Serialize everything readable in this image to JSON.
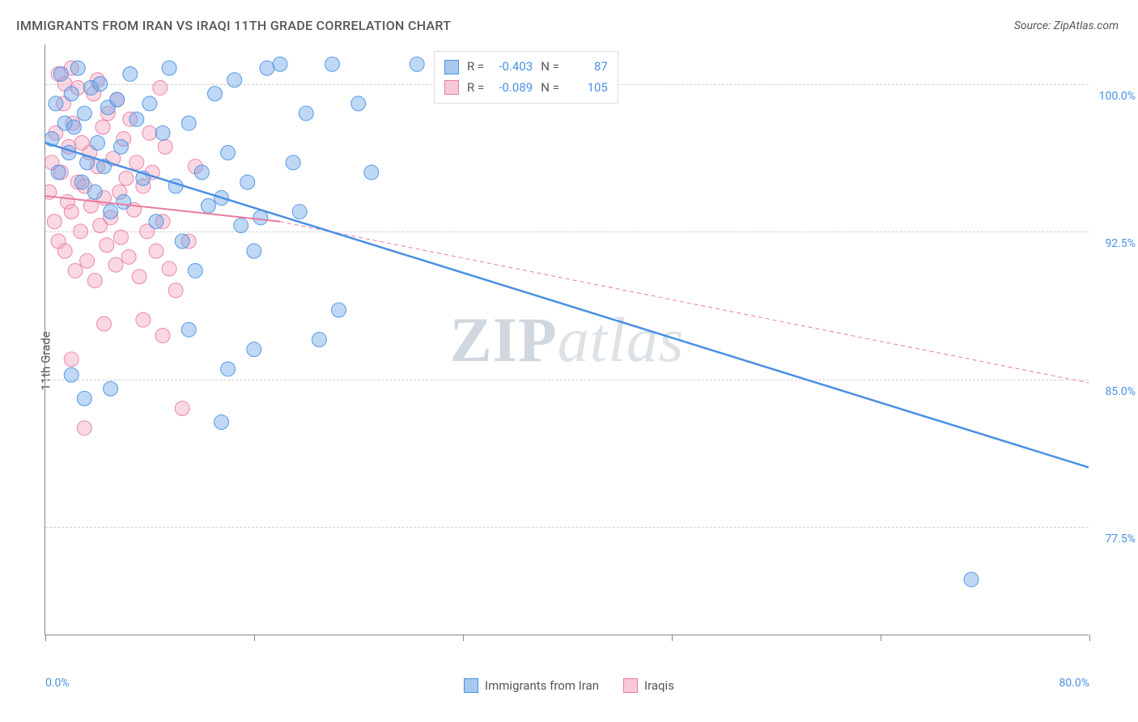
{
  "title": "IMMIGRANTS FROM IRAN VS IRAQI 11TH GRADE CORRELATION CHART",
  "source": "Source: ZipAtlas.com",
  "ylabel": "11th Grade",
  "watermark_zip": "ZIP",
  "watermark_atlas": "atlas",
  "chart": {
    "type": "scatter",
    "background_color": "#ffffff",
    "grid_color": "#d0d0d0",
    "axis_color": "#888888",
    "tick_label_color": "#4a90e2",
    "xlim": [
      0,
      80
    ],
    "ylim": [
      72,
      102
    ],
    "xtick_positions": [
      0,
      16,
      32,
      48,
      64,
      80
    ],
    "xtick_labels": {
      "0": "0.0%",
      "80": "80.0%"
    },
    "ytick_positions": [
      77.5,
      85.0,
      92.5,
      100.0
    ],
    "ytick_labels": [
      "77.5%",
      "85.0%",
      "92.5%",
      "100.0%"
    ],
    "marker_radius": 9,
    "marker_opacity": 0.45,
    "marker_stroke_opacity": 0.9,
    "series": [
      {
        "name": "Immigrants from Iran",
        "color": "#6fa8e8",
        "stroke": "#4a90e2",
        "r_label": "R =",
        "r_value": "-0.403",
        "n_label": "N =",
        "n_value": "87",
        "regression": {
          "x1": 0,
          "y1": 97.0,
          "x2": 80,
          "y2": 80.5,
          "width": 2.5,
          "dash": "none"
        },
        "points": [
          [
            0.5,
            97.2
          ],
          [
            0.8,
            99.0
          ],
          [
            1.0,
            95.5
          ],
          [
            1.2,
            100.5
          ],
          [
            1.5,
            98.0
          ],
          [
            1.8,
            96.5
          ],
          [
            2.0,
            99.5
          ],
          [
            2.2,
            97.8
          ],
          [
            2.5,
            100.8
          ],
          [
            2.8,
            95.0
          ],
          [
            3.0,
            98.5
          ],
          [
            3.2,
            96.0
          ],
          [
            3.5,
            99.8
          ],
          [
            3.8,
            94.5
          ],
          [
            4.0,
            97.0
          ],
          [
            4.2,
            100.0
          ],
          [
            4.5,
            95.8
          ],
          [
            4.8,
            98.8
          ],
          [
            5.0,
            93.5
          ],
          [
            5.5,
            99.2
          ],
          [
            5.8,
            96.8
          ],
          [
            6.0,
            94.0
          ],
          [
            6.5,
            100.5
          ],
          [
            7.0,
            98.2
          ],
          [
            7.5,
            95.2
          ],
          [
            8.0,
            99.0
          ],
          [
            8.5,
            93.0
          ],
          [
            9.0,
            97.5
          ],
          [
            9.5,
            100.8
          ],
          [
            10.0,
            94.8
          ],
          [
            10.5,
            92.0
          ],
          [
            11.0,
            98.0
          ],
          [
            11.5,
            90.5
          ],
          [
            12.0,
            95.5
          ],
          [
            12.5,
            93.8
          ],
          [
            13.0,
            99.5
          ],
          [
            13.5,
            94.2
          ],
          [
            14.0,
            96.5
          ],
          [
            14.5,
            100.2
          ],
          [
            15.0,
            92.8
          ],
          [
            15.5,
            95.0
          ],
          [
            16.0,
            91.5
          ],
          [
            16.5,
            93.2
          ],
          [
            17.0,
            100.8
          ],
          [
            2.0,
            85.2
          ],
          [
            3.0,
            84.0
          ],
          [
            5.0,
            84.5
          ],
          [
            11.0,
            87.5
          ],
          [
            13.5,
            82.8
          ],
          [
            14.0,
            85.5
          ],
          [
            18.0,
            101.0
          ],
          [
            19.0,
            96.0
          ],
          [
            20.0,
            98.5
          ],
          [
            22.0,
            101.0
          ],
          [
            24.0,
            99.0
          ],
          [
            25.0,
            95.5
          ],
          [
            21.0,
            87.0
          ],
          [
            22.5,
            88.5
          ],
          [
            16.0,
            86.5
          ],
          [
            19.5,
            93.5
          ]
        ]
      },
      {
        "name": "Iraqis",
        "color": "#f5a9c0",
        "stroke": "#e87ba0",
        "r_label": "R =",
        "r_value": "-0.089",
        "n_label": "N =",
        "n_value": "105",
        "regression_solid": {
          "x1": 0,
          "y1": 94.3,
          "x2": 18,
          "y2": 93.0,
          "width": 2,
          "dash": "none"
        },
        "regression_dashed": {
          "x1": 18,
          "y1": 93.0,
          "x2": 80,
          "y2": 84.8,
          "width": 1,
          "dash": "5,4"
        },
        "points": [
          [
            0.3,
            94.5
          ],
          [
            0.5,
            96.0
          ],
          [
            0.7,
            93.0
          ],
          [
            0.8,
            97.5
          ],
          [
            1.0,
            92.0
          ],
          [
            1.2,
            95.5
          ],
          [
            1.4,
            99.0
          ],
          [
            1.5,
            91.5
          ],
          [
            1.7,
            94.0
          ],
          [
            1.8,
            96.8
          ],
          [
            2.0,
            93.5
          ],
          [
            2.1,
            98.0
          ],
          [
            2.3,
            90.5
          ],
          [
            2.5,
            95.0
          ],
          [
            2.7,
            92.5
          ],
          [
            2.8,
            97.0
          ],
          [
            3.0,
            94.8
          ],
          [
            3.2,
            91.0
          ],
          [
            3.4,
            96.5
          ],
          [
            3.5,
            93.8
          ],
          [
            3.7,
            99.5
          ],
          [
            3.8,
            90.0
          ],
          [
            4.0,
            95.8
          ],
          [
            4.2,
            92.8
          ],
          [
            4.4,
            97.8
          ],
          [
            4.5,
            94.2
          ],
          [
            4.7,
            91.8
          ],
          [
            4.8,
            98.5
          ],
          [
            5.0,
            93.2
          ],
          [
            5.2,
            96.2
          ],
          [
            5.4,
            90.8
          ],
          [
            5.5,
            99.2
          ],
          [
            5.7,
            94.5
          ],
          [
            5.8,
            92.2
          ],
          [
            6.0,
            97.2
          ],
          [
            6.2,
            95.2
          ],
          [
            6.4,
            91.2
          ],
          [
            6.5,
            98.2
          ],
          [
            6.8,
            93.6
          ],
          [
            7.0,
            96.0
          ],
          [
            7.2,
            90.2
          ],
          [
            7.5,
            94.8
          ],
          [
            7.8,
            92.5
          ],
          [
            8.0,
            97.5
          ],
          [
            8.2,
            95.5
          ],
          [
            8.5,
            91.5
          ],
          [
            8.8,
            99.8
          ],
          [
            9.0,
            93.0
          ],
          [
            9.2,
            96.8
          ],
          [
            9.5,
            90.6
          ],
          [
            1.0,
            100.5
          ],
          [
            1.5,
            100.0
          ],
          [
            2.0,
            100.8
          ],
          [
            2.5,
            99.8
          ],
          [
            4.0,
            100.2
          ],
          [
            3.0,
            82.5
          ],
          [
            4.5,
            87.8
          ],
          [
            2.0,
            86.0
          ],
          [
            7.5,
            88.0
          ],
          [
            9.0,
            87.2
          ],
          [
            10.0,
            89.5
          ],
          [
            10.5,
            83.5
          ],
          [
            11.0,
            92.0
          ],
          [
            11.5,
            95.8
          ]
        ]
      },
      {
        "name": "extra_blue",
        "color": "#6fa8e8",
        "stroke": "#4a90e2",
        "points": [
          [
            28.5,
            101.0
          ],
          [
            71.0,
            74.8
          ]
        ]
      }
    ],
    "legend_bottom": [
      {
        "label": "Immigrants from Iran",
        "fill": "#a8c8f0",
        "stroke": "#4a90e2"
      },
      {
        "label": "Iraqis",
        "fill": "#f8c8d8",
        "stroke": "#e87ba0"
      }
    ]
  }
}
